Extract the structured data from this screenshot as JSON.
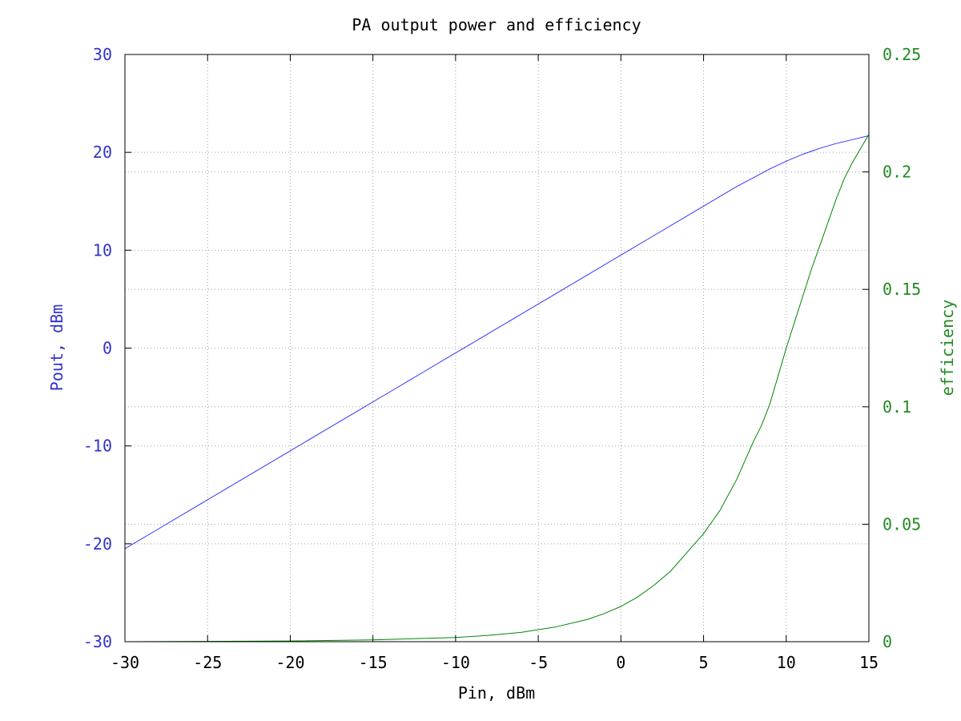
{
  "chart_data": {
    "type": "line",
    "title": "PA output power and efficiency",
    "xlabel": "Pin, dBm",
    "ylabel_left": "Pout, dBm",
    "ylabel_right": "efficiency",
    "xlim": [
      -30,
      15
    ],
    "ylim_left": [
      -30,
      30
    ],
    "ylim_right": [
      0,
      0.25
    ],
    "x_ticks": [
      "-30",
      "-25",
      "-20",
      "-15",
      "-10",
      "-5",
      "0",
      "5",
      "10",
      "15"
    ],
    "y_left_ticks": [
      "-30",
      "-20",
      "-10",
      "0",
      "10",
      "20",
      "30"
    ],
    "y_right_ticks": [
      "0",
      "0.05",
      "0.1",
      "0.15",
      "0.2",
      "0.25"
    ],
    "grid": true,
    "colors": {
      "left_axis": "#3333cc",
      "right_axis": "#228b22",
      "pout": "#3333ff",
      "efficiency": "#008800"
    },
    "series": [
      {
        "axis": "left",
        "x": [
          -30,
          -28,
          -26,
          -24,
          -22,
          -20,
          -18,
          -16,
          -14,
          -12,
          -10,
          -8,
          -6,
          -4,
          -2,
          0,
          2,
          4,
          6,
          7,
          8,
          9,
          10,
          11,
          12,
          13,
          14,
          15
        ],
        "values": [
          -20.5,
          -18.5,
          -16.5,
          -14.5,
          -12.5,
          -10.5,
          -8.5,
          -6.5,
          -4.5,
          -2.5,
          -0.5,
          1.5,
          3.5,
          5.5,
          7.5,
          9.5,
          11.5,
          13.5,
          15.5,
          16.5,
          17.4,
          18.3,
          19.1,
          19.8,
          20.4,
          20.9,
          21.3,
          21.7
        ]
      },
      {
        "axis": "right",
        "x": [
          -30,
          -20,
          -15,
          -10,
          -8,
          -6,
          -4,
          -2,
          -1,
          0,
          1,
          2,
          3,
          4,
          5,
          6,
          7,
          8,
          8.5,
          9,
          9.5,
          10,
          10.5,
          11,
          11.5,
          12,
          12.5,
          13,
          13.5,
          14,
          14.5,
          15
        ],
        "values": [
          0,
          0.0003,
          0.0008,
          0.0018,
          0.0027,
          0.004,
          0.0062,
          0.0095,
          0.012,
          0.015,
          0.019,
          0.024,
          0.03,
          0.038,
          0.046,
          0.056,
          0.069,
          0.085,
          0.092,
          0.101,
          0.113,
          0.125,
          0.136,
          0.147,
          0.158,
          0.168,
          0.178,
          0.188,
          0.197,
          0.204,
          0.21,
          0.216
        ]
      }
    ]
  }
}
